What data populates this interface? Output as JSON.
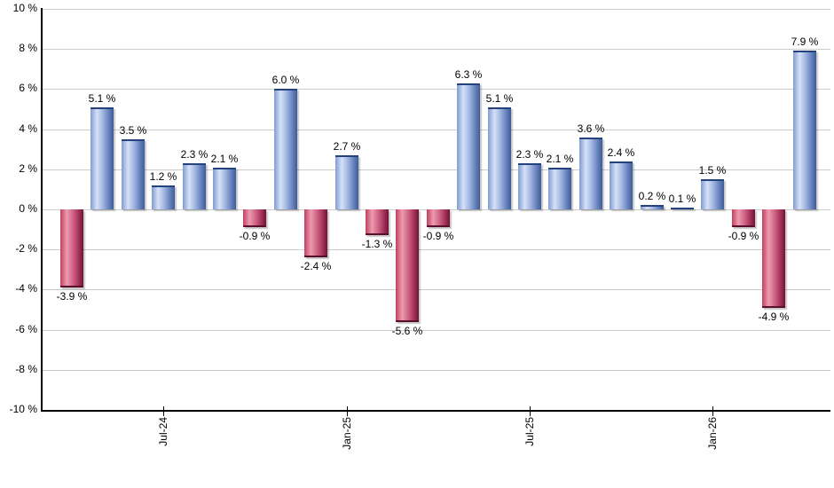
{
  "chart_data": {
    "type": "bar",
    "title": "",
    "unit": "%",
    "values": [
      -3.9,
      5.1,
      3.5,
      1.2,
      2.3,
      2.1,
      -0.9,
      6.0,
      -2.4,
      2.7,
      -1.3,
      -5.6,
      -0.9,
      6.3,
      5.1,
      2.3,
      2.1,
      3.6,
      2.4,
      0.2,
      0.1,
      1.5,
      -0.9,
      -4.9,
      7.9
    ],
    "bar_labels": [
      "-3.9 %",
      "5.1 %",
      "3.5 %",
      "1.2 %",
      "2.3 %",
      "2.1 %",
      "-0.9 %",
      "6.0 %",
      "-2.4 %",
      "2.7 %",
      "-1.3 %",
      "-5.6 %",
      "-0.9 %",
      "6.3 %",
      "5.1 %",
      "2.3 %",
      "2.1 %",
      "3.6 %",
      "2.4 %",
      "0.2 %",
      "0.1 %",
      "1.5 %",
      "-0.9 %",
      "-4.9 %",
      "7.9 %"
    ],
    "x_tick_labels": [
      "Jul-24",
      "Jan-25",
      "Jul-25",
      "Jan-26"
    ],
    "x_tick_bar_indices": [
      3,
      9,
      15,
      21
    ],
    "y_tick_labels": [
      "10 %",
      "8 %",
      "6 %",
      "4 %",
      "2 %",
      "0 %",
      "-2 %",
      "-4 %",
      "-6 %",
      "-8 %",
      "-10 %"
    ],
    "y_tick_values": [
      10,
      8,
      6,
      4,
      2,
      0,
      -2,
      -4,
      -6,
      -8,
      -10
    ],
    "ylim": [
      -10,
      10
    ],
    "grid": true,
    "legend": "none",
    "colors": {
      "positive_gradient": [
        "#7f9cd3",
        "#d6e1f7",
        "#9db3e0",
        "#6580ba",
        "#3f5d97"
      ],
      "positive_border": "#24427e",
      "negative_gradient": [
        "#c43e60",
        "#ec9bb0",
        "#cf6384",
        "#a43257",
        "#6f1437"
      ],
      "negative_border": "#580e2c",
      "gridline": "#cccccc",
      "axis": "#000000",
      "label_text": "#000000"
    }
  }
}
